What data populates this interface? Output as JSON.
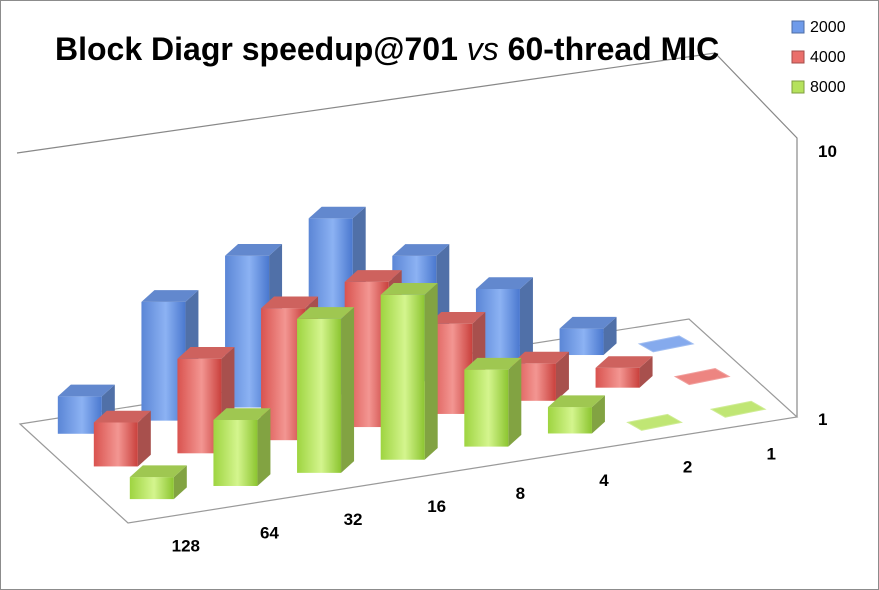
{
  "chart_data": {
    "type": "bar",
    "title_parts": [
      "Block Diagr speedup@701 ",
      "vs",
      " 60-thread MIC"
    ],
    "categories": [
      "128",
      "64",
      "32",
      "16",
      "8",
      "4",
      "2",
      "1"
    ],
    "series": [
      {
        "name": "2000",
        "values": [
          1.7,
          5.4,
          6.9,
          8.0,
          5.7,
          3.6,
          1.2,
          0.6
        ],
        "color": "#6f9bea"
      },
      {
        "name": "4000",
        "values": [
          2.0,
          4.3,
          6.0,
          6.6,
          4.1,
          1.7,
          0.9,
          0.6
        ],
        "color": "#ea6f6b"
      },
      {
        "name": "8000",
        "values": [
          1.0,
          3.0,
          7.0,
          7.5,
          3.5,
          1.2,
          0.6,
          0.6
        ],
        "color": "#b5e25c"
      }
    ],
    "z_axis": {
      "ticks": [
        "1",
        "10"
      ],
      "scale": "log",
      "range": [
        1,
        10
      ]
    },
    "legend": {
      "position": "top-right"
    },
    "grid": false
  }
}
